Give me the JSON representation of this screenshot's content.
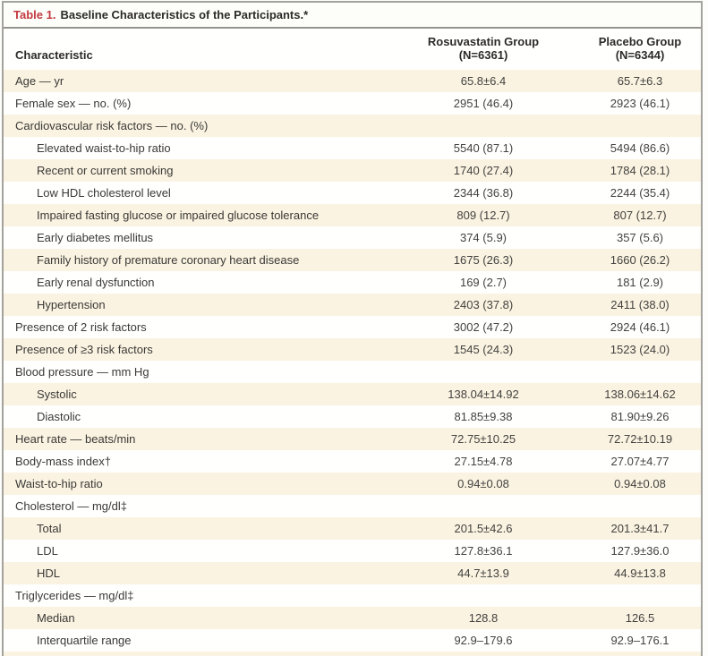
{
  "title": {
    "prefix": "Table 1.",
    "text": "Baseline Characteristics of the Participants.*"
  },
  "columns": {
    "characteristic": "Characteristic",
    "group1": {
      "name": "Rosuvastatin Group",
      "n": "(N=6361)"
    },
    "group2": {
      "name": "Placebo Group",
      "n": "(N=6344)"
    }
  },
  "colors": {
    "title_red": "#c23a40",
    "stripe_cream": "#faf3e1",
    "row_white": "#fffffe",
    "border_gray": "#a3a29d",
    "text": "#3a3937"
  },
  "table": {
    "rows": [
      {
        "label": "Age — yr",
        "indent": false,
        "v1": "65.8±6.4",
        "v2": "65.7±6.3"
      },
      {
        "label": "Female sex — no. (%)",
        "indent": false,
        "v1": "2951 (46.4)",
        "v2": "2923 (46.1)"
      },
      {
        "label": "Cardiovascular risk factors — no. (%)",
        "indent": false,
        "v1": "",
        "v2": ""
      },
      {
        "label": "Elevated waist-to-hip ratio",
        "indent": true,
        "v1": "5540 (87.1)",
        "v2": "5494 (86.6)"
      },
      {
        "label": "Recent or current smoking",
        "indent": true,
        "v1": "1740 (27.4)",
        "v2": "1784 (28.1)"
      },
      {
        "label": "Low HDL cholesterol level",
        "indent": true,
        "v1": "2344 (36.8)",
        "v2": "2244 (35.4)"
      },
      {
        "label": "Impaired fasting glucose or impaired glucose tolerance",
        "indent": true,
        "v1": "809 (12.7)",
        "v2": "807 (12.7)"
      },
      {
        "label": "Early diabetes mellitus",
        "indent": true,
        "v1": "374 (5.9)",
        "v2": "357 (5.6)"
      },
      {
        "label": "Family history of premature coronary heart disease",
        "indent": true,
        "v1": "1675 (26.3)",
        "v2": "1660 (26.2)"
      },
      {
        "label": "Early renal dysfunction",
        "indent": true,
        "v1": "169 (2.7)",
        "v2": "181 (2.9)"
      },
      {
        "label": "Hypertension",
        "indent": true,
        "v1": "2403 (37.8)",
        "v2": "2411 (38.0)"
      },
      {
        "label": "Presence of 2 risk factors",
        "indent": false,
        "v1": "3002 (47.2)",
        "v2": "2924 (46.1)"
      },
      {
        "label": "Presence of ≥3 risk factors",
        "indent": false,
        "v1": "1545 (24.3)",
        "v2": "1523 (24.0)"
      },
      {
        "label": "Blood pressure — mm Hg",
        "indent": false,
        "v1": "",
        "v2": ""
      },
      {
        "label": "Systolic",
        "indent": true,
        "v1": "138.04±14.92",
        "v2": "138.06±14.62"
      },
      {
        "label": "Diastolic",
        "indent": true,
        "v1": "81.85±9.38",
        "v2": "81.90±9.26"
      },
      {
        "label": "Heart rate — beats/min",
        "indent": false,
        "v1": "72.75±10.25",
        "v2": "72.72±10.19"
      },
      {
        "label": "Body-mass index†",
        "indent": false,
        "v1": "27.15±4.78",
        "v2": "27.07±4.77"
      },
      {
        "label": "Waist-to-hip ratio",
        "indent": false,
        "v1": "0.94±0.08",
        "v2": "0.94±0.08"
      },
      {
        "label": "Cholesterol — mg/dl‡",
        "indent": false,
        "v1": "",
        "v2": ""
      },
      {
        "label": "Total",
        "indent": true,
        "v1": "201.5±42.6",
        "v2": "201.3±41.7"
      },
      {
        "label": "LDL",
        "indent": true,
        "v1": "127.8±36.1",
        "v2": "127.9±36.0"
      },
      {
        "label": "HDL",
        "indent": true,
        "v1": "44.7±13.9",
        "v2": "44.9±13.8"
      },
      {
        "label": "Triglycerides — mg/dl‡",
        "indent": false,
        "v1": "",
        "v2": ""
      },
      {
        "label": "Median",
        "indent": true,
        "v1": "128.8",
        "v2": "126.5"
      },
      {
        "label": "Interquartile range",
        "indent": true,
        "v1": "92.9–179.6",
        "v2": "92.9–176.1"
      }
    ]
  }
}
